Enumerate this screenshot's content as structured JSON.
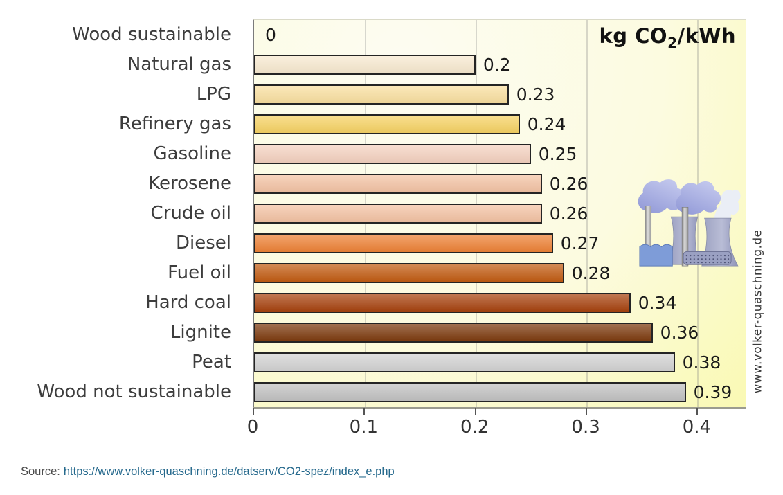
{
  "figure": {
    "title": {
      "prefix": "kg CO",
      "sub": "2",
      "suffix": "/kWh"
    },
    "watermark": "www.volker-quaschning.de",
    "source": {
      "label": "Source:",
      "url_text": "https://www.volker-quaschning.de/datserv/CO2-spez/index_e.php"
    }
  },
  "chart_data": {
    "type": "bar",
    "orientation": "horizontal",
    "title": "kg CO2/kWh",
    "xlabel": "",
    "ylabel": "",
    "categories": [
      "Wood sustainable",
      "Natural gas",
      "LPG",
      "Refinery gas",
      "Gasoline",
      "Kerosene",
      "Crude oil",
      "Diesel",
      "Fuel oil",
      "Hard coal",
      "Lignite",
      "Peat",
      "Wood not sustainable"
    ],
    "values": [
      0,
      0.2,
      0.23,
      0.24,
      0.25,
      0.26,
      0.26,
      0.27,
      0.28,
      0.34,
      0.36,
      0.38,
      0.39
    ],
    "value_labels": [
      "0",
      "0.2",
      "0.23",
      "0.24",
      "0.25",
      "0.26",
      "0.26",
      "0.27",
      "0.28",
      "0.34",
      "0.36",
      "0.38",
      "0.39"
    ],
    "bar_colors": [
      null,
      "#f8ead0",
      "#fae0a0",
      "#f7d364",
      "#f5d2c0",
      "#f4c3a4",
      "#f4c3a4",
      "#ee8236",
      "#c25c12",
      "#a8430f",
      "#7d3a0e",
      "#d3d3d3",
      "#c2c2c2"
    ],
    "x_ticks": [
      0,
      0.1,
      0.2,
      0.3,
      0.4
    ],
    "x_tick_labels": [
      "0",
      "0.1",
      "0.2",
      "0.3",
      "0.4"
    ],
    "xlim": [
      0,
      0.444
    ],
    "grid": "vertical",
    "legend": "none",
    "annotations": [
      "power-plant-illustration",
      "www.volker-quaschning.de"
    ]
  },
  "colors": {
    "bar_border": "#242424",
    "grid": "#828282",
    "axis": "#9b9b8f",
    "category_label": "#3d3d3d",
    "value_label": "#1a1a1a",
    "link": "#24688c",
    "plot_bg_yellow": "#f8f89e",
    "plot_bg_light": "#fdfcf2"
  }
}
